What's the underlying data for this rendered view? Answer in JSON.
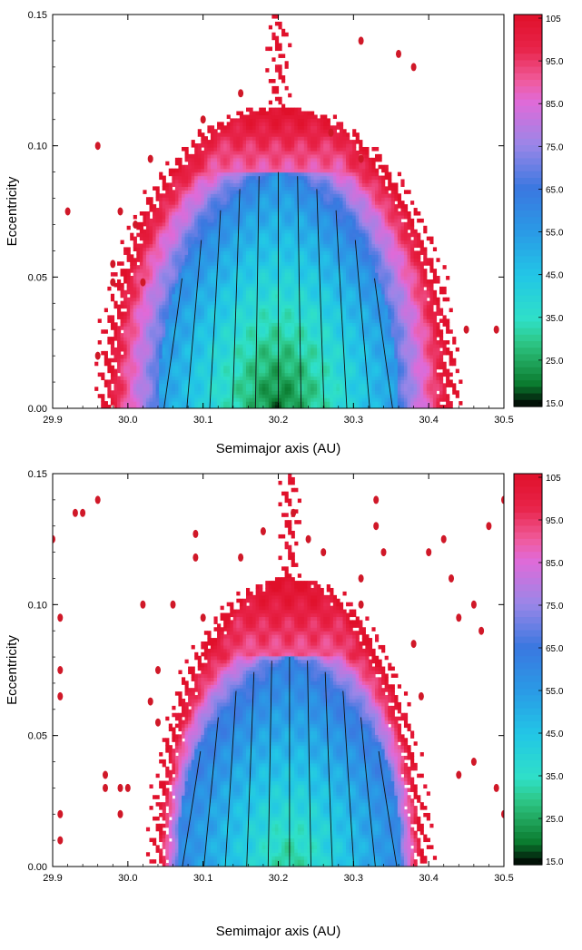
{
  "colors": {
    "scale": [
      "#000000",
      "#0a7a2e",
      "#1fa35a",
      "#2ec98a",
      "#2fe0c8",
      "#22c6e6",
      "#2a9ae6",
      "#3a78e0",
      "#9a86e8",
      "#e06ad8",
      "#f05a9a",
      "#e8244a",
      "#e0102a"
    ],
    "scale_values": [
      15,
      20,
      25,
      30,
      35,
      45,
      55,
      65,
      75,
      85,
      90,
      97,
      105
    ],
    "curve": "#111111",
    "outlier": "#d01828"
  },
  "chart_data": [
    {
      "type": "heatmap",
      "title": "",
      "xlabel": "Semimajor axis (AU)",
      "ylabel": "Eccentricity",
      "xlim": [
        29.9,
        30.5
      ],
      "ylim": [
        0.0,
        0.15
      ],
      "x_ticks": [
        "29.9",
        "30.0",
        "30.1",
        "30.2",
        "30.3",
        "30.4",
        "30.5"
      ],
      "y_ticks": [
        "0.00",
        "0.05",
        "0.10",
        "0.15"
      ],
      "colorbar": {
        "ticks": [
          "105",
          "95.0",
          "85.0",
          "75.0",
          "65.0",
          "55.0",
          "45.0",
          "35.0",
          "25.0",
          "15.0"
        ],
        "range": [
          15,
          105
        ]
      },
      "region": {
        "center_x": 30.2,
        "half_width_at_base": 0.23,
        "top_e": 0.115,
        "core_half_width": 0.16,
        "core_top_e": 0.09,
        "value_at_center_low_e": 20,
        "value_at_edge": 105
      },
      "outliers": [
        [
          29.96,
          0.1
        ],
        [
          29.92,
          0.075
        ],
        [
          29.99,
          0.075
        ],
        [
          30.01,
          0.07
        ],
        [
          29.98,
          0.055
        ],
        [
          30.03,
          0.095
        ],
        [
          30.02,
          0.048
        ],
        [
          29.98,
          0.048
        ],
        [
          29.96,
          0.02
        ],
        [
          30.31,
          0.14
        ],
        [
          30.36,
          0.135
        ],
        [
          30.38,
          0.13
        ],
        [
          30.31,
          0.095
        ],
        [
          30.15,
          0.12
        ],
        [
          30.1,
          0.11
        ],
        [
          30.45,
          0.03
        ],
        [
          30.49,
          0.03
        ],
        [
          30.27,
          0.105
        ]
      ]
    },
    {
      "type": "heatmap",
      "title": "",
      "xlabel": "Semimajor axis (AU)",
      "ylabel": "Eccentricity",
      "xlim": [
        29.9,
        30.5
      ],
      "ylim": [
        0.0,
        0.15
      ],
      "x_ticks": [
        "29.9",
        "30.0",
        "30.1",
        "30.2",
        "30.3",
        "30.4",
        "30.5"
      ],
      "y_ticks": [
        "0.00",
        "0.05",
        "0.10",
        "0.15"
      ],
      "colorbar": {
        "ticks": [
          "105",
          "95.0",
          "85.0",
          "75.0",
          "65.0",
          "55.0",
          "45.0",
          "35.0",
          "25.0",
          "15.0"
        ],
        "range": [
          15,
          105
        ]
      },
      "region": {
        "center_x": 30.215,
        "half_width_at_base": 0.175,
        "top_e": 0.11,
        "core_half_width": 0.15,
        "core_top_e": 0.08,
        "value_at_center_low_e": 30,
        "value_at_edge": 105
      },
      "outliers": [
        [
          29.9,
          0.125
        ],
        [
          29.91,
          0.095
        ],
        [
          29.93,
          0.135
        ],
        [
          29.94,
          0.135
        ],
        [
          29.96,
          0.14
        ],
        [
          29.91,
          0.065
        ],
        [
          29.91,
          0.075
        ],
        [
          29.91,
          0.02
        ],
        [
          29.91,
          0.01
        ],
        [
          29.97,
          0.035
        ],
        [
          29.97,
          0.03
        ],
        [
          29.99,
          0.03
        ],
        [
          30.0,
          0.03
        ],
        [
          29.99,
          0.02
        ],
        [
          30.02,
          0.1
        ],
        [
          30.06,
          0.1
        ],
        [
          30.04,
          0.075
        ],
        [
          30.03,
          0.063
        ],
        [
          30.04,
          0.055
        ],
        [
          30.09,
          0.118
        ],
        [
          30.09,
          0.127
        ],
        [
          30.1,
          0.095
        ],
        [
          30.15,
          0.118
        ],
        [
          30.18,
          0.128
        ],
        [
          30.22,
          0.135
        ],
        [
          30.24,
          0.125
        ],
        [
          30.26,
          0.12
        ],
        [
          30.31,
          0.11
        ],
        [
          30.31,
          0.1
        ],
        [
          30.33,
          0.14
        ],
        [
          30.33,
          0.13
        ],
        [
          30.34,
          0.12
        ],
        [
          30.38,
          0.085
        ],
        [
          30.39,
          0.065
        ],
        [
          30.4,
          0.12
        ],
        [
          30.42,
          0.125
        ],
        [
          30.43,
          0.11
        ],
        [
          30.44,
          0.095
        ],
        [
          30.46,
          0.1
        ],
        [
          30.47,
          0.09
        ],
        [
          30.48,
          0.13
        ],
        [
          30.46,
          0.04
        ],
        [
          30.44,
          0.035
        ],
        [
          30.49,
          0.03
        ],
        [
          30.5,
          0.14
        ],
        [
          30.5,
          0.02
        ]
      ]
    }
  ]
}
